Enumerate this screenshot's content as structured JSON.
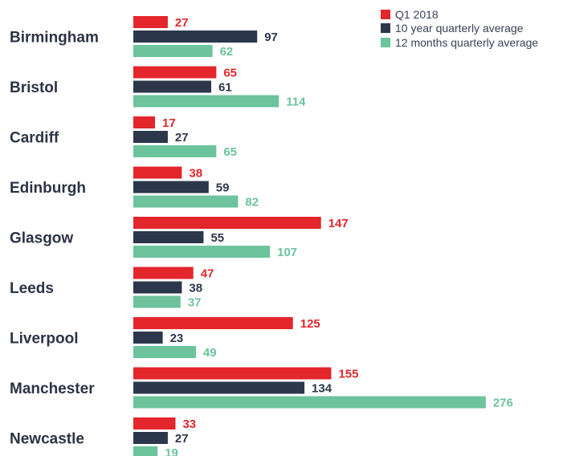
{
  "chart_data": {
    "type": "bar",
    "orientation": "horizontal",
    "categories": [
      "Birmingham",
      "Bristol",
      "Cardiff",
      "Edinburgh",
      "Glasgow",
      "Leeds",
      "Liverpool",
      "Manchester",
      "Newcastle"
    ],
    "series": [
      {
        "name": "Q1 2018",
        "color": "#e3262b",
        "values": [
          27,
          65,
          17,
          38,
          147,
          47,
          125,
          155,
          33
        ]
      },
      {
        "name": "10 year quarterly average",
        "color": "#2c374b",
        "values": [
          97,
          61,
          27,
          59,
          55,
          38,
          23,
          134,
          27
        ]
      },
      {
        "name": "12 months quarterly average",
        "color": "#6cc39c",
        "values": [
          62,
          114,
          65,
          82,
          107,
          37,
          49,
          276,
          19
        ]
      }
    ],
    "xlim": [
      0,
      276
    ],
    "grid": false,
    "legend_position": "top-right"
  }
}
